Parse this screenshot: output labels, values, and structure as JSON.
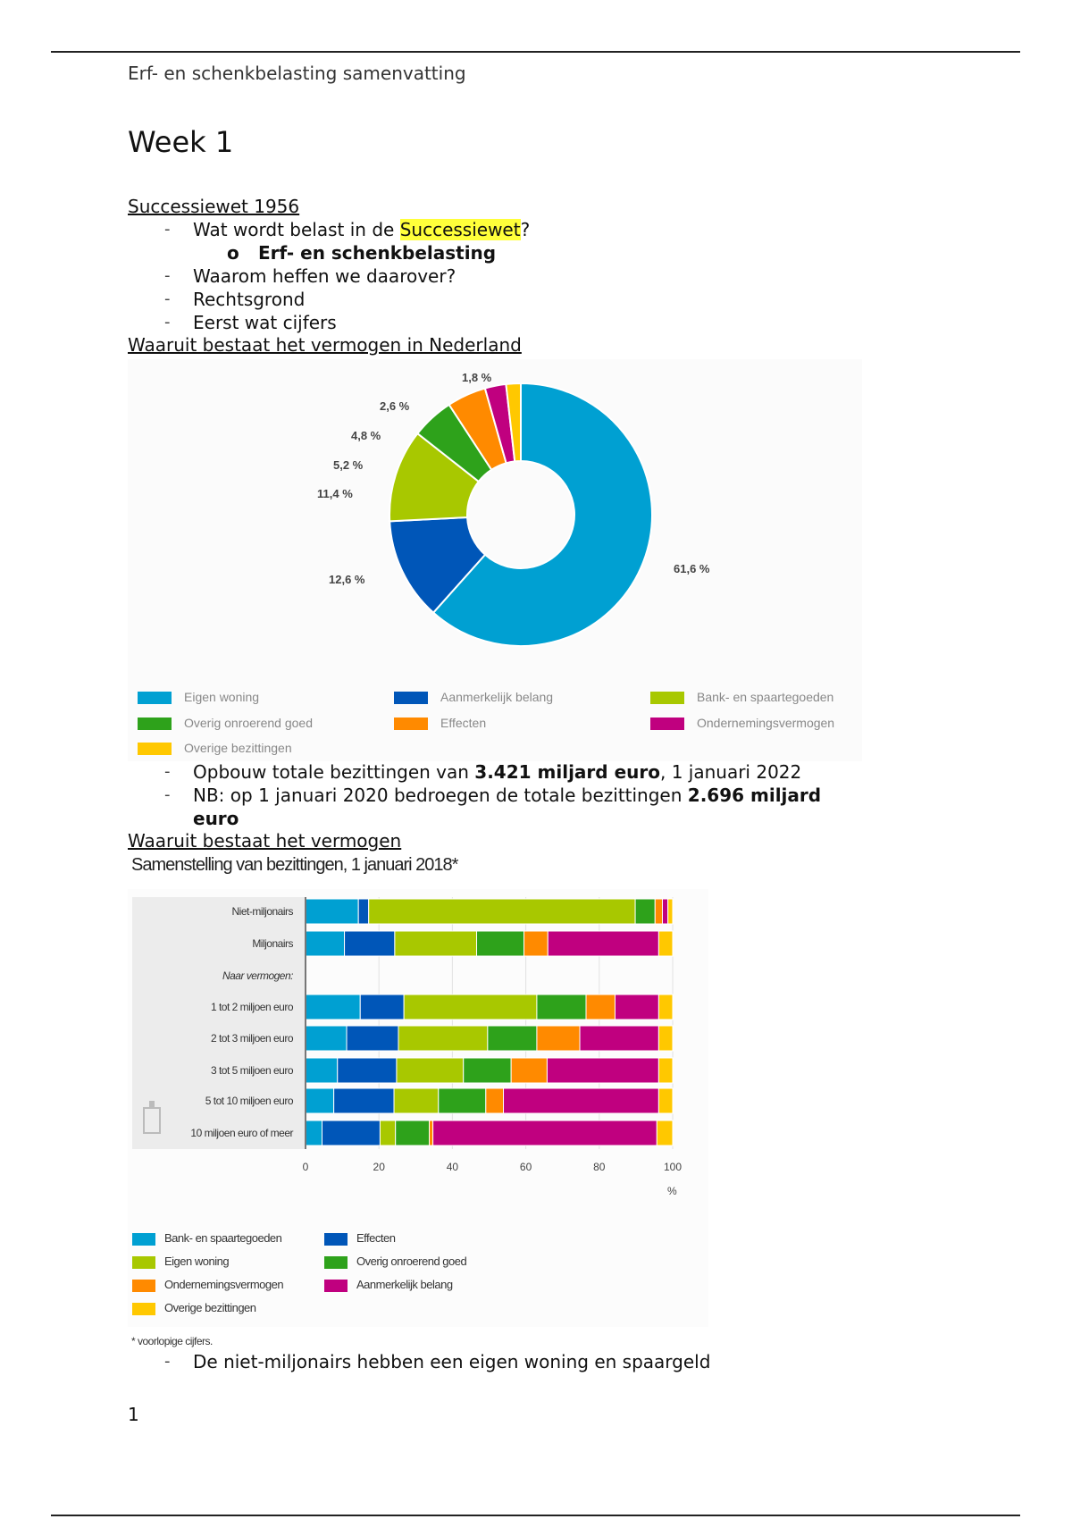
{
  "header": {
    "title": "Erf- en schenkbelasting samenvatting"
  },
  "heading": "Week 1",
  "section1": {
    "title": "Successiewet 1956",
    "bullets": [
      {
        "pre": "Wat wordt belast in de ",
        "highlight": "Successiewet",
        "post": "?"
      },
      {
        "sub": "Erf- en schenkbelasting",
        "marker": "o"
      },
      {
        "text": "Waarom heffen we daarover?"
      },
      {
        "text": "Rechtsgrond"
      },
      {
        "text": "Eerst wat cijfers"
      }
    ],
    "dash": "-"
  },
  "section2": {
    "title": "Waaruit bestaat het vermogen in Nederland",
    "bullet1": {
      "pre": "Opbouw totale bezittingen van ",
      "bold": "3.421 miljard euro",
      "post": ", 1 januari 2022"
    },
    "bullet2": {
      "pre": "NB: op 1 januari 2020 bedroegen de totale bezittingen ",
      "bold": "2.696 miljard",
      "bold2": "euro"
    }
  },
  "section3": {
    "title": "Waaruit bestaat het vermogen",
    "bullet": "De niet-miljonairs hebben een eigen woning en spaargeld"
  },
  "page_number": "1",
  "chart_data": [
    {
      "type": "pie",
      "donut": true,
      "title": "",
      "slices": [
        {
          "label": "Eigen woning",
          "value": 61.6,
          "display": "61,6 %",
          "color": "#00a0d2"
        },
        {
          "label": "Aanmerkelijk belang",
          "value": 12.6,
          "display": "12,6 %",
          "color": "#0056b8"
        },
        {
          "label": "Bank- en spaartegoeden",
          "value": 11.4,
          "display": "11,4 %",
          "color": "#a8c800"
        },
        {
          "label": "Overig onroerend goed",
          "value": 5.2,
          "display": "5,2 %",
          "color": "#2ea21b"
        },
        {
          "label": "Effecten",
          "value": 4.8,
          "display": "4,8 %",
          "color": "#ff8a00"
        },
        {
          "label": "Ondernemingsvermogen",
          "value": 2.6,
          "display": "2,6 %",
          "color": "#c0007f"
        },
        {
          "label": "Overige bezittingen",
          "value": 1.8,
          "display": "1,8 %",
          "color": "#ffc800"
        }
      ],
      "legend": [
        "Eigen woning",
        "Aanmerkelijk belang",
        "Bank- en spaartegoeden",
        "Overig onroerend goed",
        "Effecten",
        "Ondernemingsvermogen",
        "Overige bezittingen"
      ],
      "legend_position": "bottom"
    },
    {
      "type": "bar",
      "stacked": true,
      "orientation": "horizontal",
      "title": "Samenstelling van bezittingen, 1 januari 2018*",
      "xlabel": "%",
      "xlim": [
        0,
        100
      ],
      "xticks": [
        "0",
        "20",
        "40",
        "60",
        "80",
        "100"
      ],
      "categories": [
        "Niet-miljonairs",
        "Miljonairs",
        "Naar vermogen:",
        "1 tot 2 miljoen euro",
        "2 tot 3 miljoen euro",
        "3 tot 5 miljoen euro",
        "5 tot 10 miljoen euro",
        "10 miljoen euro of meer"
      ],
      "series": [
        {
          "name": "Bank- en spaartegoeden",
          "color": "#00a0d2",
          "values": [
            14.4,
            10.6,
            null,
            14.9,
            11.2,
            8.7,
            7.7,
            4.5
          ]
        },
        {
          "name": "Effecten",
          "color": "#0056b8",
          "values": [
            2.8,
            13.7,
            null,
            11.9,
            14.1,
            16.1,
            16.4,
            15.8
          ]
        },
        {
          "name": "Eigen woning",
          "color": "#a8c800",
          "values": [
            72.6,
            22.3,
            null,
            36.2,
            24.3,
            18.2,
            12.1,
            4.2
          ]
        },
        {
          "name": "Overig onroerend goed",
          "color": "#2ea21b",
          "values": [
            5.4,
            12.9,
            null,
            13.4,
            13.4,
            13.0,
            12.9,
            9.2
          ]
        },
        {
          "name": "Ondernemingsvermogen",
          "color": "#ff8a00",
          "values": [
            2.0,
            6.5,
            null,
            7.9,
            11.7,
            9.8,
            4.8,
            1.0
          ]
        },
        {
          "name": "Aanmerkelijk belang",
          "color": "#c0007f",
          "values": [
            1.5,
            30.2,
            null,
            11.9,
            21.5,
            30.4,
            42.3,
            61.0
          ]
        },
        {
          "name": "Overige bezittingen",
          "color": "#ffc800",
          "values": [
            1.3,
            3.8,
            null,
            3.8,
            3.8,
            3.8,
            3.8,
            4.3
          ]
        }
      ],
      "legend_position": "bottom",
      "footnote": "* voorlopige cijfers."
    }
  ]
}
